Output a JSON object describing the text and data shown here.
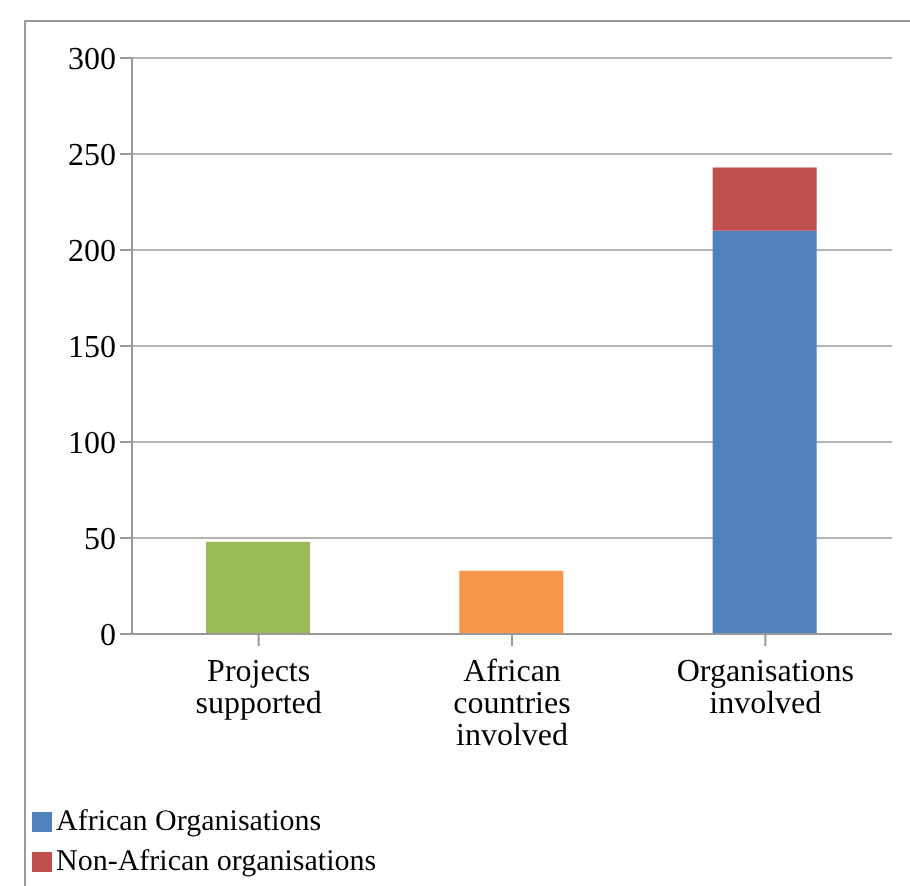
{
  "chart_data": {
    "type": "bar",
    "categories": [
      "Projects supported",
      "African countries involved",
      "Organisations involved"
    ],
    "series": [
      {
        "values": [
          48,
          33,
          null
        ],
        "colors": [
          "#9bbb59",
          "#f79646",
          null
        ]
      },
      {
        "name": "African Organisations",
        "color": "#4f81bd",
        "values": [
          null,
          null,
          210
        ]
      },
      {
        "name": "Non-African organisations",
        "color": "#c0504d",
        "values": [
          null,
          null,
          33
        ]
      }
    ],
    "stacked": true,
    "ylim": [
      0,
      300
    ],
    "yticks": [
      0,
      50,
      100,
      150,
      200,
      250,
      300
    ],
    "grid": "y",
    "legend": "bottom"
  }
}
